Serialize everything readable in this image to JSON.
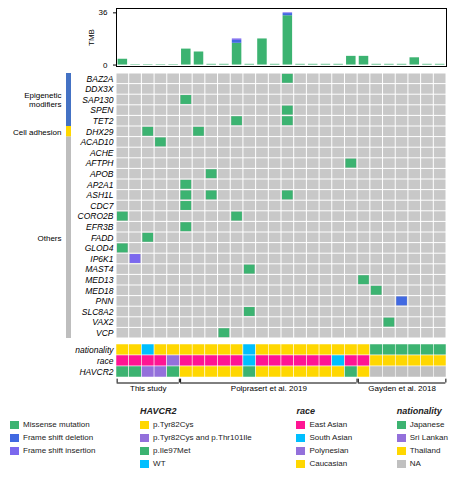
{
  "chart_data": [
    {
      "type": "bar",
      "stacked": true,
      "categories": [
        null,
        null,
        null,
        null,
        null,
        null,
        null,
        null,
        null,
        null,
        null,
        null,
        null,
        null,
        null,
        null,
        null,
        null,
        null,
        null,
        null,
        null,
        null,
        null,
        null,
        null
      ],
      "series": [
        {
          "name": "Missense mutation",
          "color": "#3CB371",
          "values": [
            4.0,
            0.3,
            0.3,
            0.3,
            0.3,
            11.0,
            9.0,
            0.5,
            0.5,
            15.0,
            0.5,
            18.0,
            0.5,
            34.0,
            0.5,
            0.5,
            0.5,
            0.5,
            6.0,
            6.0,
            0.5,
            0.5,
            0.5,
            5.0,
            0.5,
            0.5
          ]
        },
        {
          "name": "Frame shift deletion",
          "color": "#4169E1",
          "values": [
            0.0,
            0.0,
            0.0,
            0.0,
            0.0,
            0.0,
            0.0,
            0.0,
            0.0,
            2.0,
            0.0,
            0.0,
            0.0,
            1.5,
            0.0,
            0.0,
            0.0,
            0.0,
            0.0,
            0.0,
            0.0,
            0.0,
            0.0,
            0.0,
            0.0,
            0.0
          ]
        },
        {
          "name": "Frame shift insertion",
          "color": "#7B68EE",
          "values": [
            0.0,
            0.0,
            0.0,
            0.0,
            0.0,
            0.0,
            0.0,
            0.0,
            0.0,
            1.0,
            0.0,
            0.0,
            0.0,
            0.5,
            0.0,
            0.0,
            0.0,
            0.0,
            0.0,
            0.0,
            0.0,
            0.0,
            0.0,
            0.0,
            0.0,
            0.0
          ]
        }
      ],
      "ylabel": "TMB",
      "ylim": [
        -1,
        39
      ],
      "yticks": [
        0,
        36
      ],
      "tick_labels": "y"
    },
    {
      "type": "heatmap",
      "rows": [
        "BAZ2A",
        "DDX3X",
        "SAP130",
        "SPEN",
        "TET2",
        "DHX29",
        "ACAD10",
        "ACHE",
        "AFTPH",
        "APOB",
        "AP2A1",
        "ASH1L",
        "CDC7",
        "CORO2B",
        "EFR3B",
        "FADD",
        "GLOD4",
        "IP6K1",
        "MAST4",
        "MED13",
        "MED18",
        "PNN",
        "SLC8A2",
        "VAX2",
        "VCP"
      ],
      "cells": [
        [
          0,
          0,
          0,
          0,
          0,
          0,
          0,
          0,
          0,
          0,
          0,
          0,
          0,
          1,
          0,
          0,
          0,
          0,
          0,
          0,
          0,
          0,
          0,
          0,
          0,
          0
        ],
        [
          0,
          0,
          0,
          0,
          0,
          0,
          0,
          0,
          0,
          0,
          0,
          0,
          0,
          0,
          0,
          0,
          0,
          0,
          0,
          0,
          0,
          0,
          0,
          0,
          0,
          0
        ],
        [
          0,
          0,
          0,
          0,
          0,
          1,
          0,
          0,
          0,
          0,
          0,
          0,
          0,
          0,
          0,
          0,
          0,
          0,
          0,
          0,
          0,
          0,
          0,
          0,
          0,
          0
        ],
        [
          0,
          0,
          0,
          0,
          0,
          0,
          0,
          0,
          0,
          0,
          0,
          0,
          0,
          1,
          0,
          0,
          0,
          0,
          0,
          0,
          0,
          0,
          0,
          0,
          0,
          0
        ],
        [
          0,
          0,
          0,
          0,
          0,
          0,
          0,
          0,
          0,
          1,
          0,
          0,
          0,
          1,
          0,
          0,
          0,
          0,
          0,
          0,
          0,
          0,
          0,
          0,
          0,
          0
        ],
        [
          0,
          0,
          1,
          0,
          0,
          0,
          1,
          0,
          0,
          0,
          0,
          0,
          0,
          0,
          0,
          0,
          0,
          0,
          0,
          0,
          0,
          0,
          0,
          0,
          0,
          0
        ],
        [
          0,
          0,
          0,
          1,
          0,
          0,
          0,
          0,
          0,
          0,
          0,
          0,
          0,
          0,
          0,
          0,
          0,
          0,
          0,
          0,
          0,
          0,
          0,
          0,
          0,
          0
        ],
        [
          0,
          0,
          0,
          0,
          0,
          0,
          0,
          0,
          0,
          0,
          0,
          0,
          0,
          0,
          0,
          0,
          0,
          0,
          0,
          0,
          0,
          0,
          0,
          0,
          0,
          0
        ],
        [
          0,
          0,
          0,
          0,
          0,
          0,
          0,
          0,
          0,
          0,
          0,
          0,
          0,
          0,
          0,
          0,
          0,
          0,
          1,
          0,
          0,
          0,
          0,
          0,
          0,
          0
        ],
        [
          0,
          0,
          0,
          0,
          0,
          0,
          0,
          1,
          0,
          0,
          0,
          0,
          0,
          0,
          0,
          0,
          0,
          0,
          0,
          0,
          0,
          0,
          0,
          0,
          0,
          0
        ],
        [
          0,
          0,
          0,
          0,
          0,
          1,
          0,
          0,
          0,
          0,
          0,
          0,
          0,
          0,
          0,
          0,
          0,
          0,
          0,
          0,
          0,
          0,
          0,
          0,
          0,
          0
        ],
        [
          0,
          0,
          0,
          0,
          0,
          1,
          0,
          1,
          0,
          0,
          0,
          0,
          0,
          1,
          0,
          0,
          0,
          0,
          0,
          0,
          0,
          0,
          0,
          0,
          0,
          0
        ],
        [
          0,
          0,
          0,
          0,
          0,
          1,
          0,
          0,
          0,
          0,
          0,
          0,
          0,
          0,
          0,
          0,
          0,
          0,
          0,
          0,
          0,
          0,
          0,
          0,
          0,
          0
        ],
        [
          1,
          0,
          0,
          0,
          0,
          0,
          0,
          0,
          0,
          1,
          0,
          0,
          0,
          0,
          0,
          0,
          0,
          0,
          0,
          0,
          0,
          0,
          0,
          0,
          0,
          0
        ],
        [
          0,
          0,
          0,
          0,
          0,
          1,
          0,
          0,
          0,
          0,
          0,
          0,
          0,
          0,
          0,
          0,
          0,
          0,
          0,
          0,
          0,
          0,
          0,
          0,
          0,
          0
        ],
        [
          0,
          0,
          1,
          0,
          0,
          0,
          0,
          0,
          0,
          0,
          0,
          0,
          0,
          0,
          0,
          0,
          0,
          0,
          0,
          0,
          0,
          0,
          0,
          0,
          0,
          0
        ],
        [
          1,
          0,
          0,
          0,
          0,
          0,
          0,
          0,
          0,
          0,
          0,
          0,
          0,
          0,
          0,
          0,
          0,
          0,
          0,
          0,
          0,
          0,
          0,
          0,
          0,
          0
        ],
        [
          0,
          2,
          0,
          0,
          0,
          0,
          0,
          0,
          0,
          0,
          0,
          0,
          0,
          0,
          0,
          0,
          0,
          0,
          0,
          0,
          0,
          0,
          0,
          0,
          0,
          0
        ],
        [
          0,
          0,
          0,
          0,
          0,
          0,
          0,
          0,
          0,
          0,
          1,
          0,
          0,
          0,
          0,
          0,
          0,
          0,
          0,
          0,
          0,
          0,
          0,
          0,
          0,
          0
        ],
        [
          0,
          0,
          0,
          0,
          0,
          0,
          0,
          0,
          0,
          0,
          0,
          0,
          0,
          0,
          0,
          0,
          0,
          0,
          0,
          1,
          0,
          0,
          0,
          0,
          0,
          0
        ],
        [
          0,
          0,
          0,
          0,
          0,
          0,
          0,
          0,
          0,
          0,
          0,
          0,
          0,
          0,
          0,
          0,
          0,
          0,
          0,
          0,
          1,
          0,
          0,
          0,
          0,
          0
        ],
        [
          0,
          0,
          0,
          0,
          0,
          0,
          0,
          0,
          0,
          0,
          0,
          0,
          0,
          0,
          0,
          0,
          0,
          0,
          0,
          0,
          0,
          0,
          3,
          0,
          0,
          0
        ],
        [
          0,
          0,
          0,
          0,
          0,
          0,
          0,
          0,
          0,
          0,
          1,
          0,
          0,
          0,
          0,
          0,
          0,
          0,
          0,
          0,
          0,
          0,
          0,
          0,
          0,
          0
        ],
        [
          0,
          0,
          0,
          0,
          0,
          0,
          0,
          0,
          0,
          0,
          0,
          0,
          0,
          0,
          0,
          0,
          0,
          0,
          0,
          0,
          0,
          1,
          0,
          0,
          0,
          0
        ],
        [
          0,
          0,
          0,
          0,
          0,
          0,
          0,
          0,
          1,
          0,
          0,
          0,
          0,
          0,
          0,
          0,
          0,
          0,
          0,
          0,
          0,
          0,
          0,
          0,
          0,
          0
        ]
      ],
      "cell_colors": [
        "#C8C8C8",
        "#3CB371",
        "#7B68EE",
        "#4169E1"
      ],
      "annotations": [
        {
          "text": "Epigenetic\nmodifiers",
          "start": 0,
          "end": 4,
          "color": "#4472C4"
        },
        {
          "text": "Cell adhesion",
          "start": 5,
          "end": 5,
          "color": "#FFD700"
        },
        {
          "text": "Others",
          "start": 6,
          "end": 24,
          "color": "#BEBEBE"
        }
      ],
      "tick_labels": "y"
    },
    {
      "type": "strip",
      "rows": [
        "nationality",
        "race",
        "HAVCR2"
      ],
      "colors": [
        [
          "#FFD700",
          "#FFD700",
          "#00BFFF",
          "#FFD700",
          "#FFD700",
          "#FFD700",
          "#FFD700",
          "#FFD700",
          "#FFD700",
          "#FFD700",
          "#00BFFF",
          "#FFD700",
          "#FFD700",
          "#FFD700",
          "#FFD700",
          "#FFD700",
          "#FFD700",
          "#FFD700",
          "#FFD700",
          "#FFD700",
          "#3CB371",
          "#3CB371",
          "#3CB371",
          "#3CB371",
          "#3CB371",
          "#3CB371"
        ],
        [
          "#FF1493",
          "#FF1493",
          "#FF1493",
          "#FF1493",
          "#9370DB",
          "#FF1493",
          "#FF1493",
          "#FF1493",
          "#FF1493",
          "#FF1493",
          "#00BFFF",
          "#FF1493",
          "#FF1493",
          "#FF1493",
          "#FF1493",
          "#FF1493",
          "#FF1493",
          "#00BFFF",
          "#FF1493",
          "#FF1493",
          "#FFD700",
          "#FFD700",
          "#FFD700",
          "#FFD700",
          "#FFD700",
          "#FFD700"
        ],
        [
          "#3CB371",
          "#3CB371",
          "#9370DB",
          "#9370DB",
          "#3CB371",
          "#FFD700",
          "#FFD700",
          "#FFD700",
          "#FFD700",
          "#FFD700",
          "#3CB371",
          "#FFD700",
          "#FFD700",
          "#FFD700",
          "#FFD700",
          "#FFD700",
          "#FFD700",
          "#FFD700",
          "#3CB371",
          "#FFD700",
          "#C0C0C0",
          "#C0C0C0",
          "#C0C0C0",
          "#C0C0C0",
          "#C0C0C0",
          "#C0C0C0"
        ]
      ],
      "groups": [
        {
          "text": "This study",
          "start": 0,
          "end": 4
        },
        {
          "text": "Polprasert et al. 2019",
          "start": 5,
          "end": 18
        },
        {
          "text": "Gayden et al. 2018",
          "start": 19,
          "end": 25
        }
      ],
      "tick_labels": "y"
    },
    {
      "type": "legend",
      "groups": [
        {
          "title": "HAVCR2",
          "items": [
            {
              "label": "p.Tyr82Cys",
              "color": "#FFD700"
            },
            {
              "label": "p.Tyr82Cys and p.Thr101Ile",
              "color": "#9370DB"
            },
            {
              "label": "p.Ile97Met",
              "color": "#3CB371"
            },
            {
              "label": "WT",
              "color": "#00BFFF"
            }
          ]
        },
        {
          "title": "race",
          "items": [
            {
              "label": "East Asian",
              "color": "#FF1493"
            },
            {
              "label": "South Asian",
              "color": "#00BFFF"
            },
            {
              "label": "Polynesian",
              "color": "#9370DB"
            },
            {
              "label": "Caucasian",
              "color": "#FFD700"
            }
          ]
        },
        {
          "title": "nationality",
          "items": [
            {
              "label": "Japanese",
              "color": "#3CB371"
            },
            {
              "label": "Sri Lankan",
              "color": "#9370DB"
            },
            {
              "label": "Thailand",
              "color": "#FFD700"
            },
            {
              "label": "NA",
              "color": "#C0C0C0"
            }
          ]
        }
      ]
    }
  ]
}
